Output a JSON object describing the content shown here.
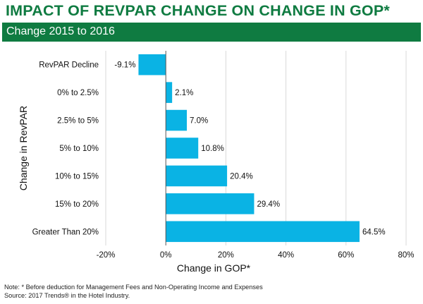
{
  "header": {
    "title": "IMPACT OF REVPAR CHANGE ON CHANGE IN GOP*",
    "subtitle": "Change 2015 to 2016"
  },
  "chart_data": {
    "type": "bar",
    "orientation": "horizontal",
    "categories": [
      "RevPAR Decline",
      "0% to 2.5%",
      "2.5% to 5%",
      "5% to 10%",
      "10% to 15%",
      "15% to 20%",
      "Greater Than 20%"
    ],
    "values": [
      -9.1,
      2.1,
      7.0,
      10.8,
      20.4,
      29.4,
      64.5
    ],
    "data_labels": [
      "-9.1%",
      "2.1%",
      "7.0%",
      "10.8%",
      "20.4%",
      "29.4%",
      "64.5%"
    ],
    "xlabel": "Change in GOP*",
    "ylabel": "Change in RevPAR",
    "xlim": [
      -20,
      80
    ],
    "xticks": [
      -20,
      0,
      20,
      40,
      60,
      80
    ],
    "xtick_labels": [
      "-20%",
      "0%",
      "20%",
      "40%",
      "60%",
      "80%"
    ],
    "grid": "vertical gridlines",
    "legend": "none",
    "bar_color": "#0ab3e4"
  },
  "notes": {
    "line1": "Note: * Before deduction for Management Fees and Non-Operating Income and Expenses",
    "line2": "Source: 2017 Trends® in the Hotel Industry."
  },
  "colors": {
    "brand_green": "#0f7b41",
    "bar": "#0ab3e4",
    "grid": "#d9d9d9"
  }
}
